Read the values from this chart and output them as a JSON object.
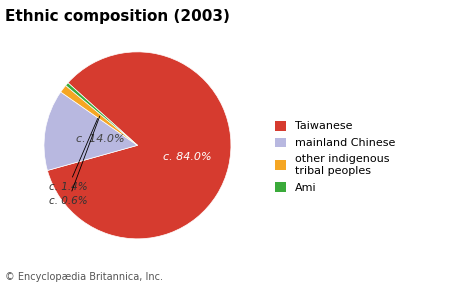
{
  "title": "Ethnic composition (2003)",
  "values": [
    84.0,
    14.0,
    1.4,
    0.6
  ],
  "colors": [
    "#d63b2f",
    "#b8b8e0",
    "#f5a623",
    "#3aaa3a"
  ],
  "pct_labels": [
    "c. 84.0%",
    "c. 14.0%",
    "c. 1.4%",
    "c. 0.6%"
  ],
  "legend_labels": [
    "Taiwanese",
    "mainland Chinese",
    "other indigenous\ntribal peoples",
    "Ami"
  ],
  "footer": "© Encyclopædia Britannica, Inc.",
  "title_fontsize": 11,
  "legend_fontsize": 8,
  "footer_fontsize": 7,
  "pct_fontsize": 8,
  "startangle": 138
}
